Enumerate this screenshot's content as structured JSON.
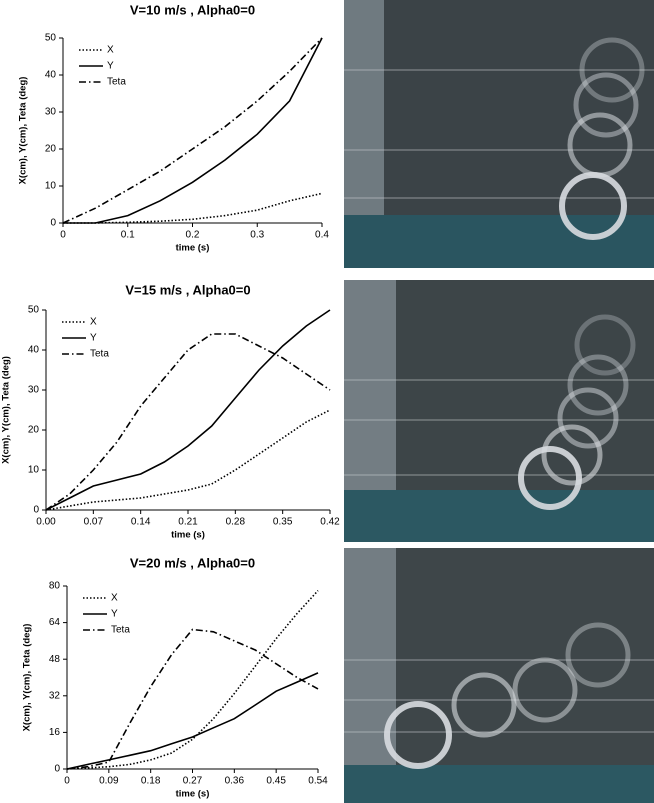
{
  "chart_data": [
    {
      "type": "line",
      "title": "V=10 m/s , Alpha0=0",
      "x_label": "time (s)",
      "y_label": "X(cm), Y(cm), Teta (deg)",
      "x": [
        0,
        0.05,
        0.1,
        0.15,
        0.2,
        0.25,
        0.3,
        0.35,
        0.4
      ],
      "series": [
        {
          "name": "X",
          "color": "#000000",
          "dash": "dotted",
          "values": [
            0,
            0,
            0.2,
            0.5,
            1,
            2,
            3.5,
            6,
            8
          ]
        },
        {
          "name": "Y",
          "color": "#000000",
          "dash": "solid",
          "values": [
            0,
            0,
            2,
            6,
            11,
            17,
            24,
            33,
            50
          ]
        },
        {
          "name": "Teta",
          "color": "#000000",
          "dash": "dashdot",
          "values": [
            0,
            4,
            9,
            14,
            20,
            26,
            33,
            41,
            50
          ]
        }
      ],
      "xlim": [
        0,
        0.4
      ],
      "xticks": [
        0,
        0.1,
        0.2,
        0.3,
        0.4
      ],
      "ylim": [
        0,
        50
      ],
      "yticks": [
        0,
        10,
        20,
        30,
        40,
        50
      ]
    },
    {
      "type": "line",
      "title": "V=15 m/s , Alpha0=0",
      "x_label": "time (s)",
      "y_label": "X(cm), Y(cm), Teta (deg)",
      "x": [
        0,
        0.035,
        0.07,
        0.105,
        0.14,
        0.175,
        0.21,
        0.245,
        0.28,
        0.315,
        0.35,
        0.385,
        0.42
      ],
      "series": [
        {
          "name": "X",
          "color": "#000000",
          "dash": "dotted",
          "values": [
            0,
            1,
            2,
            2.5,
            3,
            4,
            5,
            6.5,
            10,
            14,
            18,
            22,
            25
          ]
        },
        {
          "name": "Y",
          "color": "#000000",
          "dash": "solid",
          "values": [
            0,
            3,
            6,
            7.5,
            9,
            12,
            16,
            21,
            28,
            35,
            41,
            46,
            50
          ]
        },
        {
          "name": "Teta",
          "color": "#000000",
          "dash": "dashdot",
          "values": [
            0,
            4,
            10,
            17,
            26,
            33,
            40,
            44,
            44,
            41,
            38,
            34,
            30
          ]
        }
      ],
      "xlim": [
        0,
        0.42
      ],
      "xticks": [
        {
          "value": 0,
          "label": "0.00"
        },
        0.07,
        0.14,
        0.21,
        0.28,
        0.35,
        0.42
      ],
      "ylim": [
        0,
        50
      ],
      "yticks": [
        0,
        10,
        20,
        30,
        40,
        50
      ]
    },
    {
      "type": "line",
      "title": "V=20 m/s , Alpha0=0",
      "x_label": "time (s)",
      "y_label": "X(cm), Y(cm), Teta (deg)",
      "x": [
        0,
        0.045,
        0.09,
        0.135,
        0.18,
        0.225,
        0.27,
        0.315,
        0.36,
        0.405,
        0.45,
        0.495,
        0.54
      ],
      "series": [
        {
          "name": "X",
          "color": "#000000",
          "dash": "dotted",
          "values": [
            0,
            0.5,
            1,
            2,
            4,
            7,
            13,
            22,
            33,
            45,
            57,
            68,
            78
          ]
        },
        {
          "name": "Y",
          "color": "#000000",
          "dash": "solid",
          "values": [
            0,
            2,
            4,
            6,
            8,
            11,
            14,
            18,
            22,
            28,
            34,
            38,
            42
          ]
        },
        {
          "name": "Teta",
          "color": "#000000",
          "dash": "dashdot",
          "values": [
            0,
            1,
            3,
            20,
            36,
            50,
            61,
            60,
            56,
            52,
            46,
            40,
            35
          ]
        }
      ],
      "xlim": [
        0,
        0.54
      ],
      "xticks": [
        0,
        0.09,
        0.18,
        0.27,
        0.36,
        0.45,
        0.54
      ],
      "ylim": [
        0,
        80
      ],
      "yticks": [
        0,
        16,
        32,
        48,
        64,
        80
      ]
    }
  ]
}
